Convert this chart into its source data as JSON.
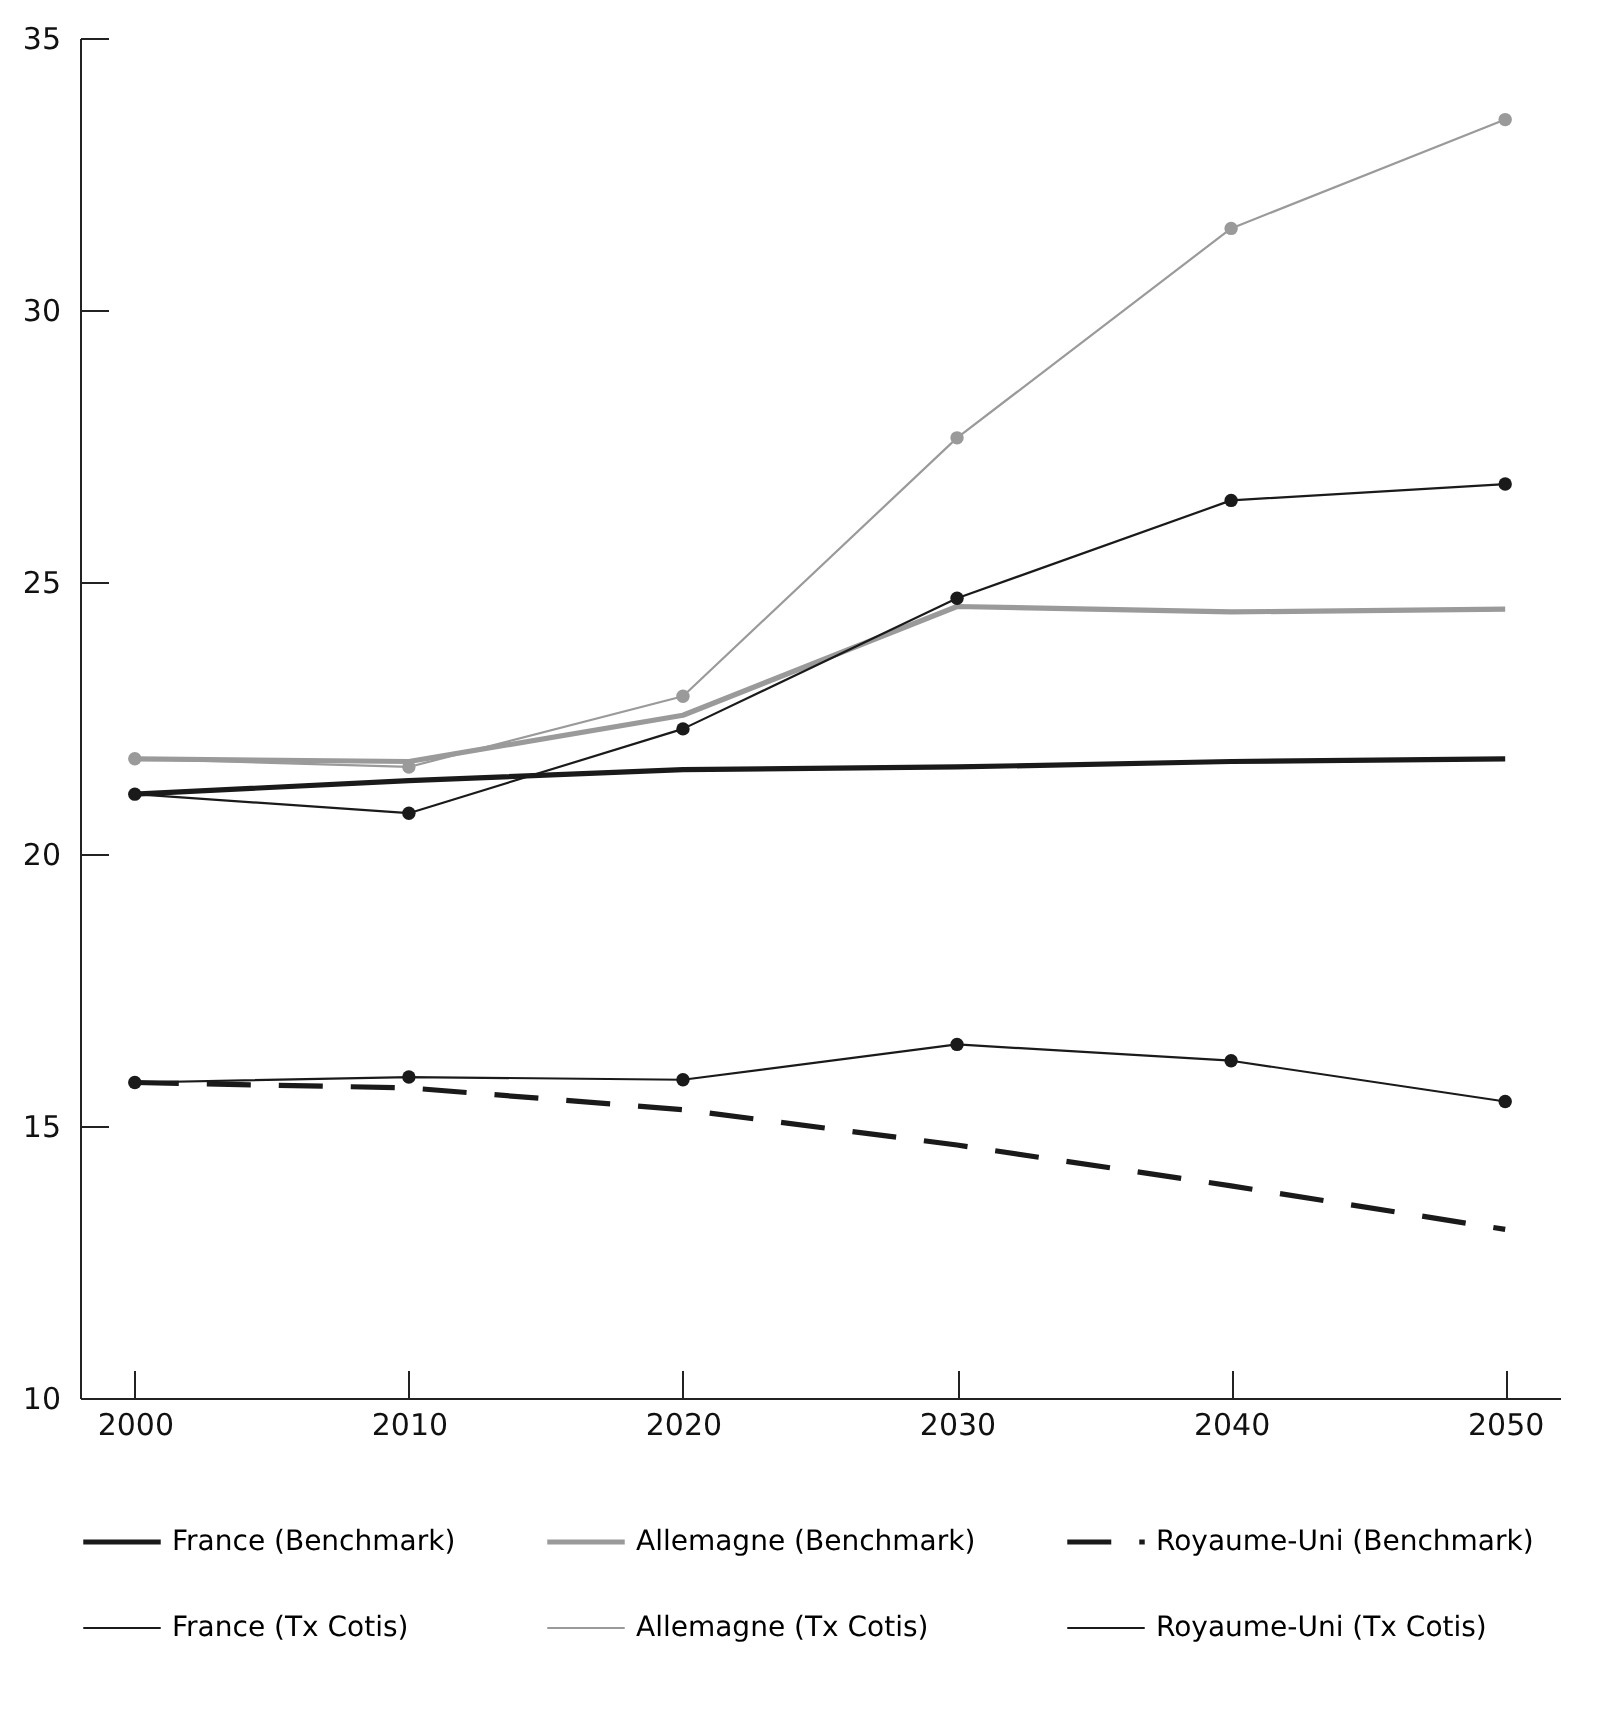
{
  "chart_data": {
    "type": "line",
    "x": [
      2000,
      2010,
      2020,
      2030,
      2040,
      2050
    ],
    "xlim": [
      1998,
      2052
    ],
    "xticks": [
      2000,
      2010,
      2020,
      2030,
      2040,
      2050
    ],
    "ylim": [
      10,
      35
    ],
    "yticks": [
      10,
      15,
      20,
      25,
      30,
      35
    ],
    "grid": false,
    "legend": "bottom",
    "series": [
      {
        "name": "France (Benchmark)",
        "color": "#1a1a1a",
        "line_style": "solid",
        "marker": "none",
        "values": [
          21.1,
          21.35,
          21.55,
          21.6,
          21.7,
          21.75
        ]
      },
      {
        "name": "Allemagne (Benchmark)",
        "color": "#9a9a9a",
        "line_style": "solid",
        "marker": "none",
        "values": [
          21.75,
          21.7,
          22.55,
          24.55,
          24.45,
          24.5
        ]
      },
      {
        "name": "Royaume-Uni (Benchmark)",
        "color": "#1a1a1a",
        "line_style": "dashed",
        "marker": "none",
        "values": [
          15.8,
          15.7,
          15.3,
          14.65,
          13.9,
          13.1
        ]
      },
      {
        "name": "France (Tx Cotis)",
        "color": "#1a1a1a",
        "line_style": "solid",
        "marker": "circle",
        "values": [
          21.1,
          20.75,
          22.3,
          24.7,
          26.5,
          26.8
        ]
      },
      {
        "name": "Allemagne (Tx Cotis)",
        "color": "#9a9a9a",
        "line_style": "solid",
        "marker": "circle",
        "values": [
          21.75,
          21.6,
          22.9,
          27.65,
          31.5,
          33.5
        ]
      },
      {
        "name": "Royaume-Uni (Tx Cotis)",
        "color": "#1a1a1a",
        "line_style": "solid",
        "marker": "circle",
        "values": [
          15.8,
          15.9,
          15.85,
          16.5,
          16.2,
          15.45
        ]
      }
    ]
  }
}
